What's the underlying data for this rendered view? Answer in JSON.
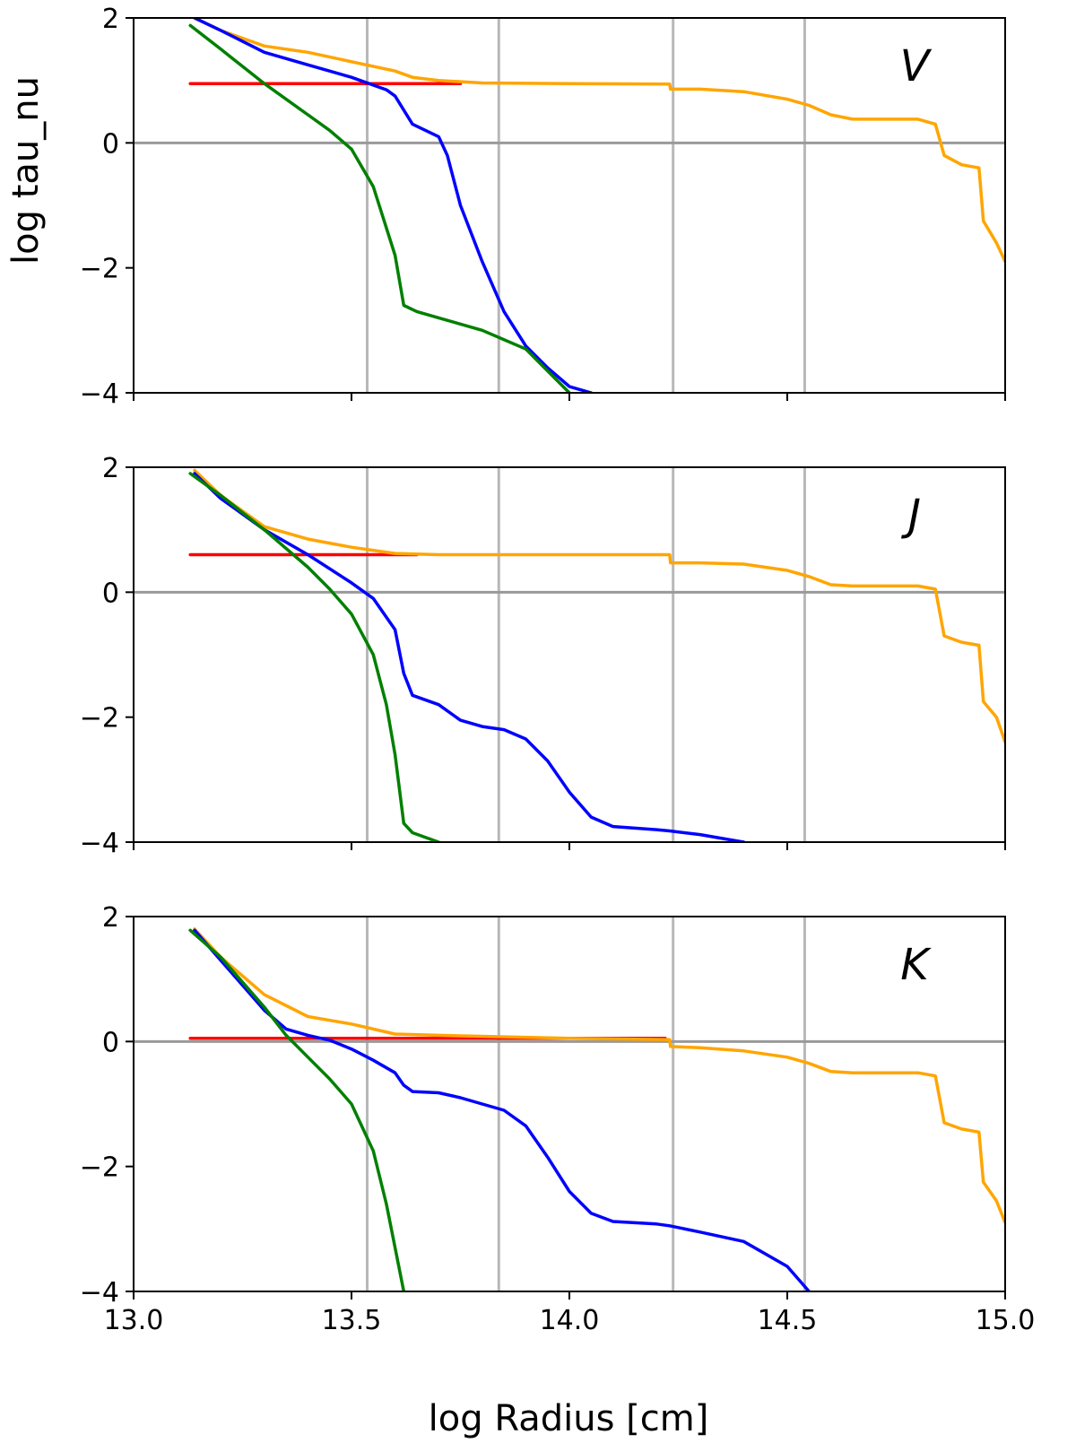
{
  "chart_data": {
    "type": "line",
    "xlabel": "log Radius  [cm]",
    "ylabel": "log tau_nu",
    "xlim": [
      13.0,
      15.0
    ],
    "ylim": [
      -4,
      2
    ],
    "x_ticks": [
      13.0,
      13.5,
      14.0,
      14.5,
      15.0
    ],
    "x_tick_labels": [
      "13.0",
      "13.5",
      "14.0",
      "14.5",
      "15.0"
    ],
    "y_ticks": [
      2,
      0,
      -2,
      -4
    ],
    "y_tick_labels": [
      "2",
      "0",
      "−2",
      "−4"
    ],
    "vertical_lines_x": [
      13.536,
      13.838,
      14.238,
      14.54
    ],
    "horizontal_line_y": 0,
    "grid": false,
    "colors": {
      "red": "#ff0000",
      "orange": "#ffa500",
      "blue": "#0000ff",
      "green": "#008000",
      "refline": "#999999",
      "vline": "#b8b8b8"
    },
    "panels": [
      {
        "label": "V",
        "series": [
          {
            "color": "red",
            "x": [
              13.13,
              13.75
            ],
            "y": [
              0.95,
              0.95
            ]
          },
          {
            "color": "orange",
            "x": [
              13.14,
              13.2,
              13.3,
              13.4,
              13.5,
              13.6,
              13.62,
              13.64,
              13.7,
              13.8,
              14.0,
              14.23,
              14.232,
              14.3,
              14.4,
              14.5,
              14.55,
              14.6,
              14.65,
              14.8,
              14.84,
              14.86,
              14.9,
              14.94,
              14.95,
              14.98,
              15.0
            ],
            "y": [
              2.0,
              1.8,
              1.55,
              1.45,
              1.3,
              1.15,
              1.1,
              1.05,
              1.0,
              0.96,
              0.95,
              0.94,
              0.86,
              0.86,
              0.82,
              0.7,
              0.6,
              0.45,
              0.38,
              0.38,
              0.3,
              -0.2,
              -0.35,
              -0.4,
              -1.25,
              -1.6,
              -1.9
            ]
          },
          {
            "color": "blue",
            "x": [
              13.14,
              13.2,
              13.3,
              13.4,
              13.5,
              13.58,
              13.6,
              13.64,
              13.7,
              13.72,
              13.75,
              13.8,
              13.85,
              13.9,
              13.95,
              14.0,
              14.05
            ],
            "y": [
              2.0,
              1.8,
              1.45,
              1.25,
              1.05,
              0.85,
              0.75,
              0.3,
              0.1,
              -0.2,
              -1.0,
              -1.9,
              -2.7,
              -3.25,
              -3.6,
              -3.9,
              -4.0
            ]
          },
          {
            "color": "green",
            "x": [
              13.13,
              13.2,
              13.3,
              13.4,
              13.45,
              13.5,
              13.55,
              13.6,
              13.62,
              13.65,
              13.7,
              13.8,
              13.9,
              14.0
            ],
            "y": [
              1.88,
              1.5,
              0.95,
              0.45,
              0.2,
              -0.1,
              -0.7,
              -1.8,
              -2.6,
              -2.7,
              -2.8,
              -3.0,
              -3.3,
              -4.0
            ]
          }
        ]
      },
      {
        "label": "J",
        "series": [
          {
            "color": "red",
            "x": [
              13.13,
              13.65
            ],
            "y": [
              0.6,
              0.6
            ]
          },
          {
            "color": "orange",
            "x": [
              13.14,
              13.2,
              13.3,
              13.4,
              13.5,
              13.6,
              13.7,
              14.0,
              14.23,
              14.232,
              14.3,
              14.4,
              14.5,
              14.55,
              14.6,
              14.65,
              14.8,
              14.84,
              14.86,
              14.9,
              14.94,
              14.95,
              14.98,
              15.0
            ],
            "y": [
              1.95,
              1.55,
              1.05,
              0.85,
              0.72,
              0.62,
              0.6,
              0.6,
              0.6,
              0.47,
              0.47,
              0.45,
              0.35,
              0.25,
              0.12,
              0.1,
              0.1,
              0.05,
              -0.7,
              -0.8,
              -0.85,
              -1.75,
              -2.0,
              -2.4
            ]
          },
          {
            "color": "blue",
            "x": [
              13.14,
              13.2,
              13.3,
              13.4,
              13.5,
              13.55,
              13.6,
              13.62,
              13.64,
              13.7,
              13.75,
              13.8,
              13.85,
              13.9,
              13.95,
              14.0,
              14.05,
              14.1,
              14.2,
              14.23,
              14.3,
              14.4
            ],
            "y": [
              1.9,
              1.5,
              1.0,
              0.6,
              0.15,
              -0.1,
              -0.6,
              -1.3,
              -1.65,
              -1.8,
              -2.05,
              -2.15,
              -2.2,
              -2.35,
              -2.7,
              -3.2,
              -3.6,
              -3.75,
              -3.8,
              -3.82,
              -3.88,
              -4.0
            ]
          },
          {
            "color": "green",
            "x": [
              13.13,
              13.2,
              13.3,
              13.4,
              13.45,
              13.5,
              13.55,
              13.58,
              13.6,
              13.62,
              13.64,
              13.7
            ],
            "y": [
              1.9,
              1.55,
              1.0,
              0.4,
              0.05,
              -0.35,
              -1.0,
              -1.8,
              -2.6,
              -3.7,
              -3.85,
              -4.0
            ]
          }
        ]
      },
      {
        "label": "K",
        "series": [
          {
            "color": "red",
            "x": [
              13.13,
              14.22
            ],
            "y": [
              0.05,
              0.05
            ]
          },
          {
            "color": "orange",
            "x": [
              13.14,
              13.2,
              13.3,
              13.4,
              13.5,
              13.6,
              13.7,
              14.0,
              14.23,
              14.232,
              14.3,
              14.4,
              14.5,
              14.55,
              14.6,
              14.65,
              14.8,
              14.84,
              14.86,
              14.9,
              14.94,
              14.95,
              14.98,
              15.0
            ],
            "y": [
              1.8,
              1.35,
              0.75,
              0.4,
              0.28,
              0.12,
              0.1,
              0.05,
              0.03,
              -0.08,
              -0.1,
              -0.15,
              -0.25,
              -0.35,
              -0.48,
              -0.5,
              -0.5,
              -0.55,
              -1.3,
              -1.4,
              -1.45,
              -2.25,
              -2.55,
              -2.9
            ]
          },
          {
            "color": "blue",
            "x": [
              13.14,
              13.2,
              13.3,
              13.35,
              13.4,
              13.45,
              13.5,
              13.55,
              13.6,
              13.62,
              13.64,
              13.7,
              13.75,
              13.8,
              13.85,
              13.9,
              13.95,
              14.0,
              14.05,
              14.1,
              14.2,
              14.23,
              14.3,
              14.4,
              14.5,
              14.55
            ],
            "y": [
              1.78,
              1.3,
              0.5,
              0.2,
              0.1,
              0.02,
              -0.12,
              -0.3,
              -0.5,
              -0.7,
              -0.8,
              -0.82,
              -0.9,
              -1.0,
              -1.1,
              -1.35,
              -1.85,
              -2.4,
              -2.75,
              -2.88,
              -2.92,
              -2.95,
              -3.05,
              -3.2,
              -3.6,
              -4.0
            ]
          },
          {
            "color": "green",
            "x": [
              13.13,
              13.2,
              13.3,
              13.35,
              13.4,
              13.45,
              13.5,
              13.55,
              13.58,
              13.6,
              13.62
            ],
            "y": [
              1.78,
              1.35,
              0.55,
              0.1,
              -0.25,
              -0.6,
              -1.0,
              -1.75,
              -2.6,
              -3.3,
              -4.0
            ]
          }
        ]
      }
    ]
  }
}
